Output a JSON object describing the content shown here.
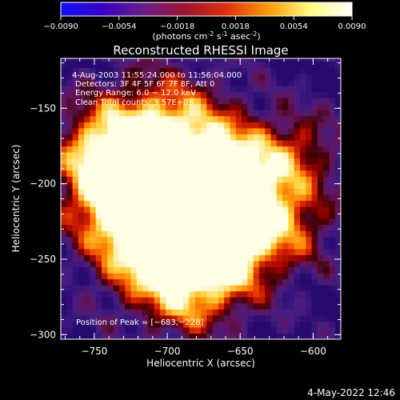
{
  "colorbar": {
    "ticks": [
      "-0.0090",
      "-0.0054",
      "-0.0018",
      "0.0018",
      "0.0054",
      "0.0090"
    ],
    "unit_label": "(photons cm",
    "unit_exp1": "-2",
    "unit_mid": " s",
    "unit_exp2": "-1",
    "unit_mid2": " asec",
    "unit_exp3": "-2",
    "unit_end": ")",
    "range": [
      -0.009,
      0.009
    ],
    "colors": [
      "#1010ff",
      "#3a00c8",
      "#6a1e8a",
      "#a0142e",
      "#e0300a",
      "#ff9a00",
      "#ffff80",
      "#ffffff"
    ]
  },
  "chart_data": {
    "type": "heatmap",
    "title": "Reconstructed RHESSI Image",
    "xlabel": "Heliocentric X (arcsec)",
    "ylabel": "Heliocentric Y (arcsec)",
    "xlim": [
      -773,
      -581
    ],
    "ylim": [
      -303,
      -117
    ],
    "xticks": [
      -750,
      -700,
      -650,
      -600
    ],
    "xtick_labels": [
      "−750",
      "−700",
      "−650",
      "−600"
    ],
    "yticks": [
      -150,
      -200,
      -250,
      -300
    ],
    "ytick_labels": [
      "−150",
      "−200",
      "−250",
      "−300"
    ],
    "peak": [
      -683,
      -228
    ],
    "info": [
      "4-Aug-2003 11:55:24.000 to 11:56:04.000",
      "Detectors: 3F 4F 5F 6F 7F 8F, Att 0",
      "Energy Range: 6.0 − 12.0 keV",
      "Clean    Total counts: 3.57E+03"
    ],
    "peak_label": "Position of Peak = [−683,−228]"
  },
  "footer_date": "4-May-2022 12:46"
}
